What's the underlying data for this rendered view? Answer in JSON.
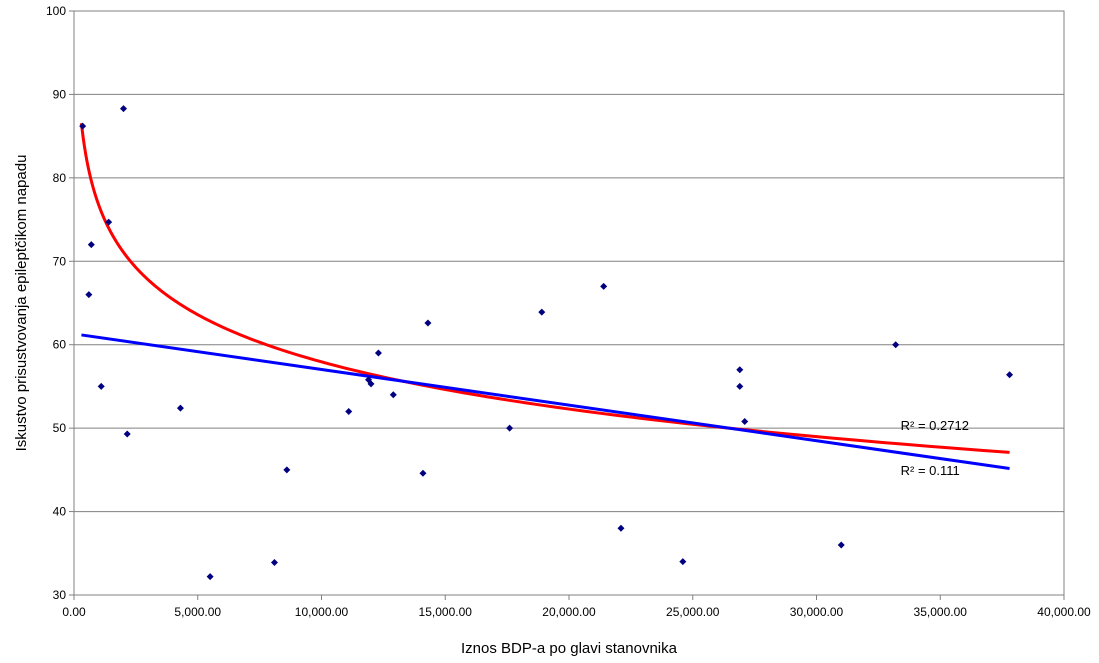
{
  "chart_data": {
    "type": "scatter",
    "title": "",
    "xlabel": "Iznos BDP-a po glavi stanovnika",
    "ylabel": "Iskustvo prisustvovanja epileptčikom napadu",
    "xlim": [
      0,
      40000
    ],
    "ylim": [
      30,
      100
    ],
    "x_ticks": [
      "0.00",
      "5,000.00",
      "10,000.00",
      "15,000.00",
      "20,000.00",
      "25,000.00",
      "30,000.00",
      "35,000.00",
      "40,000.00"
    ],
    "y_ticks": [
      "30",
      "40",
      "50",
      "60",
      "70",
      "80",
      "90",
      "100"
    ],
    "grid": "horizontal",
    "marker_color": "#000080",
    "points": [
      {
        "x": 350,
        "y": 86.2
      },
      {
        "x": 600,
        "y": 66
      },
      {
        "x": 700,
        "y": 72
      },
      {
        "x": 1100,
        "y": 55
      },
      {
        "x": 1400,
        "y": 74.7
      },
      {
        "x": 2000,
        "y": 88.3
      },
      {
        "x": 2150,
        "y": 49.3
      },
      {
        "x": 4300,
        "y": 52.4
      },
      {
        "x": 5500,
        "y": 32.2
      },
      {
        "x": 8100,
        "y": 33.9
      },
      {
        "x": 8600,
        "y": 45
      },
      {
        "x": 11100,
        "y": 52
      },
      {
        "x": 11900,
        "y": 55.8
      },
      {
        "x": 12000,
        "y": 55.3
      },
      {
        "x": 12300,
        "y": 59
      },
      {
        "x": 12900,
        "y": 54
      },
      {
        "x": 14100,
        "y": 44.6
      },
      {
        "x": 14300,
        "y": 62.6
      },
      {
        "x": 17600,
        "y": 50
      },
      {
        "x": 18900,
        "y": 63.9
      },
      {
        "x": 21400,
        "y": 67
      },
      {
        "x": 22100,
        "y": 38
      },
      {
        "x": 24600,
        "y": 34
      },
      {
        "x": 26900,
        "y": 57
      },
      {
        "x": 26900,
        "y": 55
      },
      {
        "x": 27100,
        "y": 50.8
      },
      {
        "x": 31000,
        "y": 36
      },
      {
        "x": 33200,
        "y": 60
      },
      {
        "x": 37800,
        "y": 56.4
      }
    ],
    "trendlines": [
      {
        "kind": "logarithmic",
        "color": "#ff0000",
        "a": 133.1,
        "b": -8.16,
        "x_range": [
          300,
          37800
        ],
        "label": "R² = 0.2712",
        "label_x": 33400,
        "label_y": 49.8
      },
      {
        "kind": "linear",
        "color": "#0000ff",
        "slope": -0.000427,
        "intercept": 61.3,
        "x_range": [
          300,
          37800
        ],
        "label": "R² = 0.111",
        "label_x": 33400,
        "label_y": 44.4
      }
    ]
  }
}
